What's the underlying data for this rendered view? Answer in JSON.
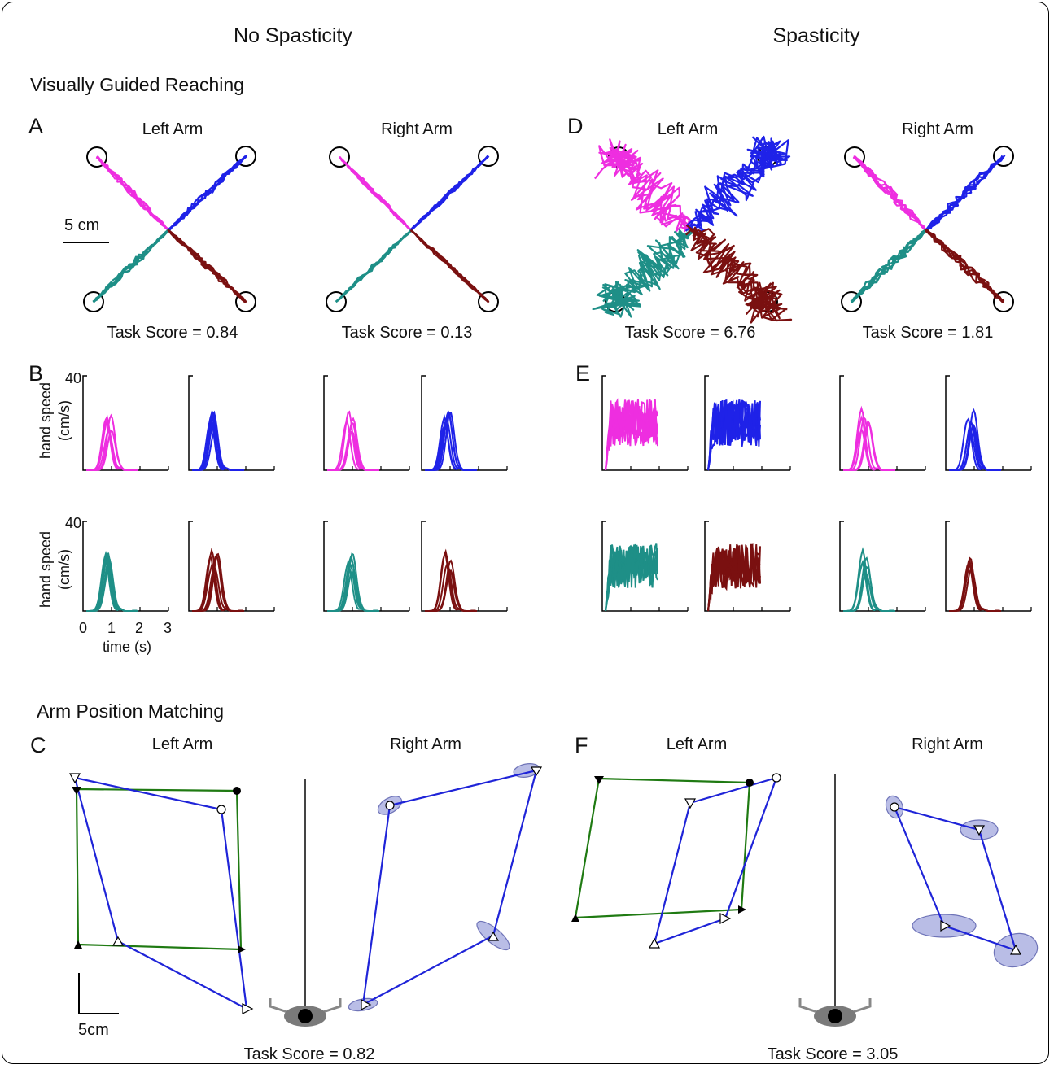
{
  "headers": {
    "left": "No Spasticity",
    "right": "Spasticity"
  },
  "sections": {
    "vgr": "Visually Guided Reaching",
    "apm": "Arm Position Matching"
  },
  "panels": {
    "A": "A",
    "B": "B",
    "C": "C",
    "D": "D",
    "E": "E",
    "F": "F"
  },
  "arms": {
    "left": "Left Arm",
    "right": "Right Arm"
  },
  "scalebars": {
    "reach": "5 cm",
    "match": "5cm"
  },
  "scores": {
    "a_left": "Task Score = 0.84",
    "a_right": "Task Score = 0.13",
    "d_left": "Task Score = 6.76",
    "d_right": "Task Score = 1.81",
    "c": "Task Score = 0.82",
    "f": "Task Score = 3.05"
  },
  "speed_axis": {
    "ylabel": "hand speed",
    "yunit": "(cm/s)",
    "ymax_label": "40",
    "xlabel": "time (s)",
    "xticks": [
      "0",
      "1",
      "2",
      "3"
    ]
  },
  "colors": {
    "magenta": "#ee2ee0",
    "blue": "#1f22e8",
    "teal": "#1e8f87",
    "darkred": "#7a1010",
    "green": "#1f7a12",
    "path_blue": "#1f24d8",
    "ellipse": "#b9bde6"
  },
  "icons": [
    "target-circle-icon",
    "eye-icon",
    "triangle-marker-icon"
  ]
}
